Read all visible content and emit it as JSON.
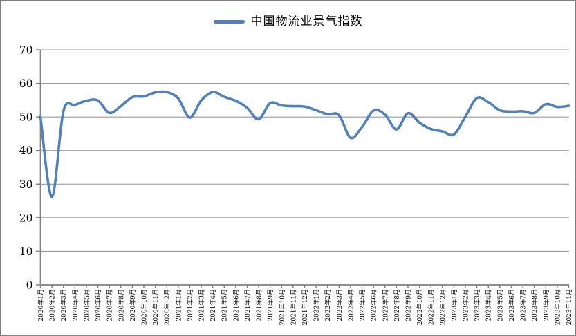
{
  "chart_data": {
    "type": "line",
    "title": "中国物流业景气指数",
    "legend": {
      "label": "中国物流业景气指数",
      "position": "top-center"
    },
    "series": [
      {
        "name": "中国物流业景气指数",
        "values": [
          50.1,
          26.2,
          51.7,
          53.5,
          54.8,
          54.9,
          51.2,
          53.2,
          55.9,
          56.1,
          57.3,
          57.4,
          55.5,
          49.8,
          54.9,
          57.4,
          56.0,
          54.8,
          52.7,
          49.3,
          54.1,
          53.4,
          53.2,
          53.1,
          52.0,
          50.8,
          50.5,
          43.8,
          47.0,
          51.9,
          50.7,
          46.3,
          51.1,
          48.3,
          46.4,
          45.7,
          44.8,
          50.1,
          55.6,
          54.4,
          52.0,
          51.6,
          51.7,
          51.2,
          53.8,
          53.0,
          53.3
        ]
      }
    ],
    "categories": [
      "2020年1月",
      "2020年2月",
      "2020年3月",
      "2020年4月",
      "2020年5月",
      "2020年6月",
      "2020年7月",
      "2020年8月",
      "2020年9月",
      "2020年10月",
      "2020年11月",
      "2020年12月",
      "2021年1月",
      "2021年2月",
      "2021年3月",
      "2021年4月",
      "2021年5月",
      "2021年6月",
      "2021年7月",
      "2021年8月",
      "2021年9月",
      "2021年10月",
      "2021年11月",
      "2021年12月",
      "2022年1月",
      "2022年2月",
      "2022年3月",
      "2022年4月",
      "2022年5月",
      "2022年6月",
      "2022年7月",
      "2022年8月",
      "2022年9月",
      "2022年10月",
      "2022年11月",
      "2022年12月",
      "2023年1月",
      "2023年2月",
      "2023年3月",
      "2023年4月",
      "2023年5月",
      "2023年6月",
      "2023年7月",
      "2023年8月",
      "2023年9月",
      "2023年10月",
      "2023年11月"
    ],
    "yticks": [
      0,
      10,
      20,
      30,
      40,
      50,
      60,
      70
    ],
    "ylim": [
      0,
      70
    ],
    "xlabel": "",
    "ylabel": "",
    "grid": "horizontal",
    "smoothed": true,
    "colors": {
      "line": "#4F81BD",
      "axis": "#808080",
      "gridline": "#9b9b9b",
      "text": "#000000",
      "background": "#ffffff",
      "border": "#7f7f7f"
    }
  }
}
